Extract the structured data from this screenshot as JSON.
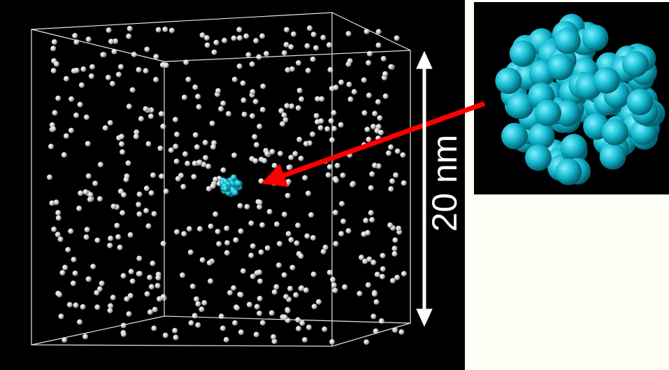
{
  "scale_label": "20 nm"
}
